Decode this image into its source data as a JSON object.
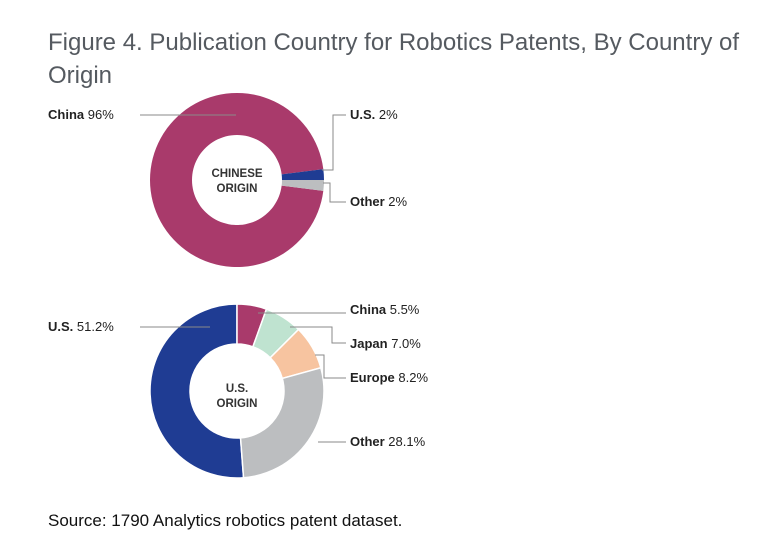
{
  "title": "Figure 4. Publication Country for Robotics Patents, By Country of Origin",
  "source": "Source: 1790 Analytics robotics patent dataset.",
  "chart_data": [
    {
      "type": "pie",
      "variant": "donut",
      "center_label": [
        "CHINESE",
        "ORIGIN"
      ],
      "slices": [
        {
          "name": "China",
          "value": 96,
          "display": "96%",
          "color": "#a93a6b"
        },
        {
          "name": "U.S.",
          "value": 2,
          "display": "2%",
          "color": "#1f3c93"
        },
        {
          "name": "Other",
          "value": 2,
          "display": "2%",
          "color": "#bcbec0"
        }
      ]
    },
    {
      "type": "pie",
      "variant": "donut",
      "center_label": [
        "U.S.",
        "ORIGIN"
      ],
      "slices": [
        {
          "name": "U.S.",
          "value": 51.2,
          "display": "51.2%",
          "color": "#1f3c93"
        },
        {
          "name": "China",
          "value": 5.5,
          "display": "5.5%",
          "color": "#a93a6b"
        },
        {
          "name": "Japan",
          "value": 7.0,
          "display": "7.0%",
          "color": "#bfe3d0"
        },
        {
          "name": "Europe",
          "value": 8.2,
          "display": "8.2%",
          "color": "#f7c4a0"
        },
        {
          "name": "Other",
          "value": 28.1,
          "display": "28.1%",
          "color": "#bcbec0"
        }
      ]
    }
  ]
}
